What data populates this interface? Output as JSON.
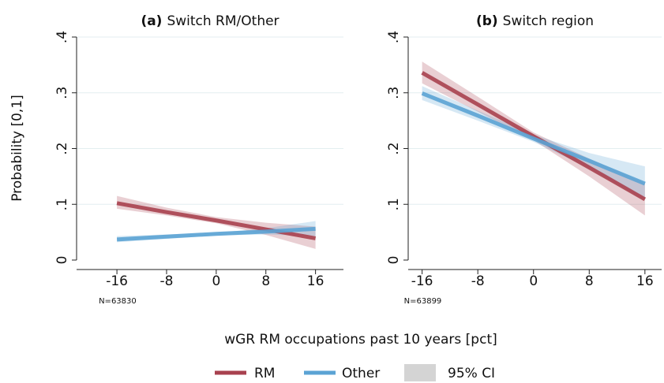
{
  "chart_data": [
    {
      "type": "line",
      "title_prefix": "(a)",
      "title": "Switch RM/Other",
      "annotation": "N=63830",
      "x": [
        -16,
        -8,
        0,
        8,
        16
      ],
      "xlim": [
        -22.5,
        20.5
      ],
      "xticks": [
        -16,
        -8,
        0,
        8,
        16
      ],
      "ylim": [
        0,
        0.4
      ],
      "yticks": [
        0,
        {
          "value": 0.1,
          "label": ".1"
        },
        {
          "value": 0.2,
          "label": ".2"
        },
        {
          "value": 0.3,
          "label": ".3"
        },
        {
          "value": 0.4,
          "label": ".4"
        }
      ],
      "grid": true,
      "ci_label": "95% CI",
      "series": [
        {
          "name": "RM",
          "color": "#a8414f",
          "values": [
            0.102,
            0.086,
            0.071,
            0.055,
            0.039
          ],
          "lower": [
            0.092,
            0.08,
            0.066,
            0.045,
            0.02
          ],
          "upper": [
            0.115,
            0.094,
            0.077,
            0.067,
            0.06
          ]
        },
        {
          "name": "Other",
          "color": "#5ba3d4",
          "values": [
            0.037,
            0.042,
            0.047,
            0.051,
            0.056
          ],
          "lower": [
            0.032,
            0.038,
            0.044,
            0.046,
            0.043
          ],
          "upper": [
            0.043,
            0.046,
            0.049,
            0.057,
            0.07
          ]
        }
      ]
    },
    {
      "type": "line",
      "title_prefix": "(b)",
      "title": "Switch region",
      "annotation": "N=63899",
      "x": [
        -16,
        -8,
        0,
        8,
        16
      ],
      "xlim": [
        -18,
        18.4
      ],
      "xticks": [
        -16,
        -8,
        0,
        8,
        16
      ],
      "ylim": [
        0,
        0.4
      ],
      "yticks": [
        0,
        {
          "value": 0.1,
          "label": ".1"
        },
        {
          "value": 0.2,
          "label": ".2"
        },
        {
          "value": 0.3,
          "label": ".3"
        },
        {
          "value": 0.4,
          "label": ".4"
        }
      ],
      "grid": true,
      "series": [
        {
          "name": "RM",
          "color": "#a8414f",
          "values": [
            0.336,
            0.279,
            0.222,
            0.166,
            0.109
          ],
          "lower": [
            0.317,
            0.266,
            0.215,
            0.15,
            0.08
          ],
          "upper": [
            0.356,
            0.293,
            0.229,
            0.182,
            0.138
          ]
        },
        {
          "name": "Other",
          "color": "#5ba3d4",
          "values": [
            0.299,
            0.259,
            0.218,
            0.178,
            0.137
          ],
          "lower": [
            0.287,
            0.25,
            0.212,
            0.165,
            0.108
          ],
          "upper": [
            0.312,
            0.268,
            0.225,
            0.192,
            0.168
          ]
        }
      ]
    }
  ],
  "xlabel": "wGR RM occupations past 10 years [pct]",
  "ylabel": "Probability [0,1]"
}
